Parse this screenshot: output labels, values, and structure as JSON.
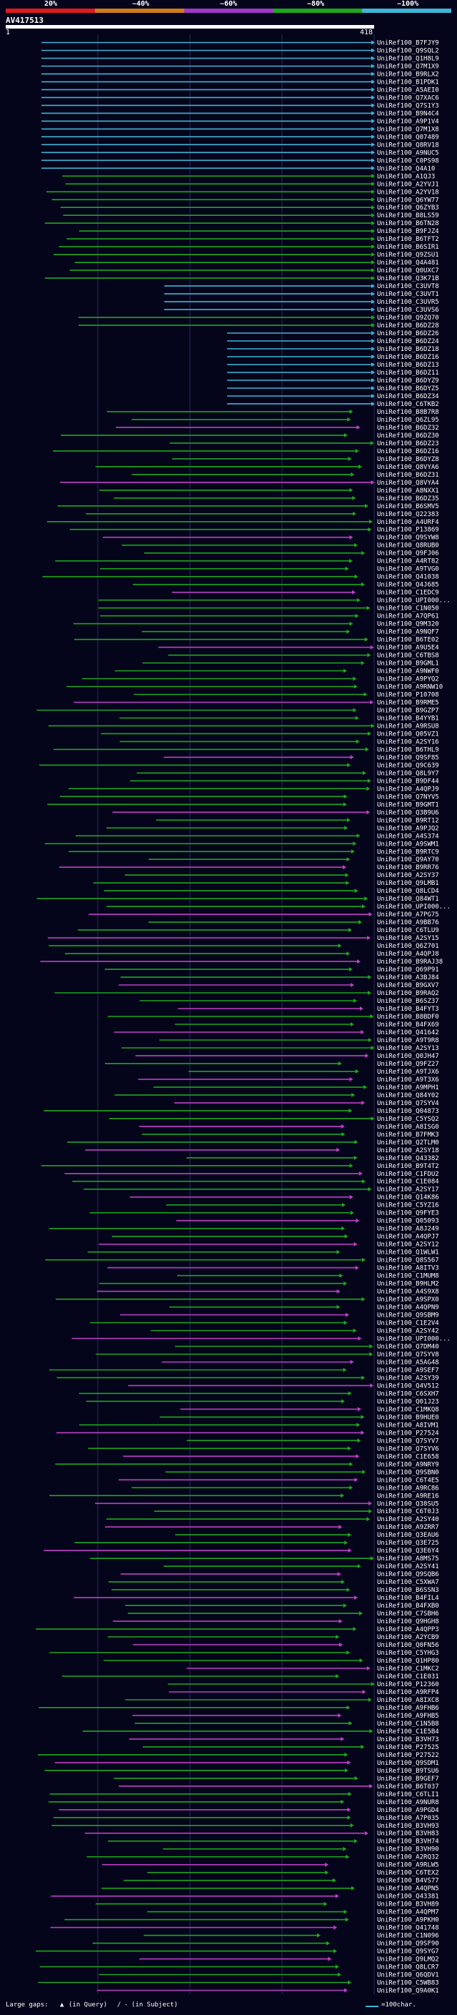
{
  "header": {
    "scale_labels": [
      "20%",
      "~40%",
      "~60%",
      "~80%",
      "~100%"
    ],
    "scale_colors": [
      "#e01a1a",
      "#d07a1a",
      "#a038c8",
      "#1da81d",
      "#3fb6d6"
    ],
    "query_id": "AV417513",
    "coord_start": "1",
    "coord_end": "418"
  },
  "legend": {
    "gaps_label": "Large gaps:",
    "query_gap_label": "(in Query)",
    "subject_gap_label": "(in Subject)",
    "scale_note": "=100char."
  },
  "chart_data": {
    "type": "alignment-overview",
    "title": "AV417513",
    "query_range": [
      1,
      418
    ],
    "color_legend": [
      {
        "label": "20%",
        "color": "#e01a1a"
      },
      {
        "label": "~40%",
        "color": "#d07a1a"
      },
      {
        "label": "~60%",
        "color": "#a038c8"
      },
      {
        "label": "~80%",
        "color": "#1da81d"
      },
      {
        "label": "~100%",
        "color": "#3fb6d6"
      }
    ],
    "hits": [
      "UniRef100_B7FJY9",
      "UniRef100_Q9SQL2",
      "UniRef100_Q1H8L9",
      "UniRef100_Q7M1X9",
      "UniRef100_B9RLX2",
      "UniRef100_B1PDK1",
      "UniRef100_A5AEI0",
      "UniRef100_Q7XAC6",
      "UniRef100_Q7S1Y3",
      "UniRef100_B9N4C4",
      "UniRef100_A9P1V4",
      "UniRef100_Q7M1X8",
      "UniRef100_Q07489",
      "UniRef100_Q8RV18",
      "UniRef100_A9NUC5",
      "UniRef100_C0PS98",
      "UniRef100_Q4A10",
      "UniRef100_A1QJ3",
      "UniRef100_A2YVJ1",
      "UniRef100_A2YV18",
      "UniRef100_Q6YW77",
      "UniRef100_Q6ZYB3",
      "UniRef100_B8LS59",
      "UniRef100_B6TN28",
      "UniRef100_B9FJZ4",
      "UniRef100_B6TFT2",
      "UniRef100_B6SIR1",
      "UniRef100_Q9ZSU1",
      "UniRef100_Q4A481",
      "UniRef100_Q0UXC7",
      "UniRef100_Q3K71B",
      "UniRef100_C3UVT8",
      "UniRef100_C3UVT1",
      "UniRef100_C3UVR5",
      "UniRef100_C3UVS6",
      "UniRef100_Q9ZQ70",
      "UniRef100_B6DZ28",
      "UniRef100_B6DZ26",
      "UniRef100_B6DZ24",
      "UniRef100_B6DZ18",
      "UniRef100_B6DZ16",
      "UniRef100_B6DZ13",
      "UniRef100_B6DZ11",
      "UniRef100_B6DYZ9",
      "UniRef100_B6DYZ5",
      "UniRef100_B6DZ34",
      "UniRef100_C6TKB2",
      "UniRef100_B8B7R8",
      "UniRef100_Q6ZL95",
      "UniRef100_B6DZ32",
      "UniRef100_B6DZ30",
      "UniRef100_B6DZ23",
      "UniRef100_B6DZ16",
      "UniRef100_B6DYZ8",
      "UniRef100_Q8VYA6",
      "UniRef100_B6DZ31",
      "UniRef100_Q8VYA4",
      "UniRef100_A8NXX1",
      "UniRef100_B6DZ35",
      "UniRef100_B6SMV5",
      "UniRef100_Q22383",
      "UniRef100_A4URF4",
      "UniRef100_P13869",
      "UniRef100_Q9SYW8",
      "UniRef100_Q8RUB0",
      "UniRef100_Q9FJ06",
      "UniRef100_A4RT82",
      "UniRef100_A9TVG0",
      "UniRef100_Q41038",
      "UniRef100_Q4J685",
      "UniRef100_C1EDC9",
      "UniRef100_UPI000...",
      "UniRef100_C1N050",
      "UniRef100_A7QP61",
      "UniRef100_Q9M320",
      "UniRef100_A9NQF7",
      "UniRef100_B6TE02",
      "UniRef100_A9U5E4",
      "UniRef100_C6TBS8",
      "UniRef100_B9GML1",
      "UniRef100_A9NWF0",
      "UniRef100_A9PYQ2",
      "UniRef100_A9RNW10",
      "UniRef100_P10708",
      "UniRef100_B9RME5",
      "UniRef100_B9GZP7",
      "UniRef100_B4YYB1",
      "UniRef100_A9RSU8",
      "UniRef100_Q05VZ1",
      "UniRef100_A2SY16",
      "UniRef100_B6THL9",
      "UniRef100_Q9SF85",
      "UniRef100_Q9C639",
      "UniRef100_Q8L9Y7",
      "UniRef100_B9DF44",
      "UniRef100_A4QPJ9",
      "UniRef100_Q7NYV5",
      "UniRef100_B9GMT1",
      "UniRef100_Q3B9U6",
      "UniRef100_B9RT12",
      "UniRef100_A9PJQ2",
      "UniRef100_A4S374",
      "UniRef100_A9SWM1",
      "UniRef100_B9RTC9",
      "UniRef100_Q9AY70",
      "UniRef100_B9RR76",
      "UniRef100_A2SY37",
      "UniRef100_Q9LMB1",
      "UniRef100_Q8LCD4",
      "UniRef100_Q84WT1",
      "UniRef100_UPI000...",
      "UniRef100_A7PG75",
      "UniRef100_A9BB76",
      "UniRef100_C6TLU9",
      "UniRef100_A2SY15",
      "UniRef100_Q6Z701",
      "UniRef100_A4QPJ8",
      "UniRef100_B9RAJ38",
      "UniRef100_Q69P91",
      "UniRef100_A3BJ84",
      "UniRef100_B9GXV7",
      "UniRef100_B9RAQ2",
      "UniRef100_B6SZ37",
      "UniRef100_B4FYT3",
      "UniRef100_B8BDF0",
      "UniRef100_B4FX69",
      "UniRef100_Q41642",
      "UniRef100_A9T9R8",
      "UniRef100_A2SY13",
      "UniRef100_Q0JH47",
      "UniRef100_Q9FZ27",
      "UniRef100_A9TJX6",
      "UniRef100_A9T3X6",
      "UniRef100_A9MPH1",
      "UniRef100_Q84Y02",
      "UniRef100_Q7SYV4",
      "UniRef100_Q04873",
      "UniRef100_C5YSQ2",
      "UniRef100_A8ISG0",
      "UniRef100_B7FMK3",
      "UniRef100_Q2TLM0",
      "UniRef100_A2SY18",
      "UniRef100_Q43382",
      "UniRef100_B9T4T2",
      "UniRef100_C1FDU2",
      "UniRef100_C1E084",
      "UniRef100_A2SY17",
      "UniRef100_Q14K86",
      "UniRef100_C5YZ16",
      "UniRef100_Q9FYE3",
      "UniRef100_Q05093",
      "UniRef100_A8J249",
      "UniRef100_A4QPJ7",
      "UniRef100_A2SY12",
      "UniRef100_Q1WLW1",
      "UniRef100_Q8S567",
      "UniRef100_A8ITV3",
      "UniRef100_C1MUM8",
      "UniRef100_B9HLM2",
      "UniRef100_A4S9X8",
      "UniRef100_A9SPX0",
      "UniRef100_A4QPN9",
      "UniRef100_Q9SBM9",
      "UniRef100_C1E2V4",
      "UniRef100_A2SY42",
      "UniRef100_UPI000...",
      "UniRef100_Q7DM40",
      "UniRef100_Q7SYV8",
      "UniRef100_A5AG48",
      "UniRef100_A9SEF7",
      "UniRef100_A2SY39",
      "UniRef100_Q4V512",
      "UniRef100_C6SXH7",
      "UniRef100_Q01J23",
      "UniRef100_C1MKQ8",
      "UniRef100_B9HUE0",
      "UniRef100_A8IVM1",
      "UniRef100_P27524",
      "UniRef100_Q7SYV7",
      "UniRef100_Q7SYV6",
      "UniRef100_C1E658",
      "UniRef100_A9NRY9",
      "UniRef100_Q9SBN0",
      "UniRef100_C6T4E5",
      "UniRef100_A9RC86",
      "UniRef100_A9RE16",
      "UniRef100_Q38SU5",
      "UniRef100_C6T0J3",
      "UniRef100_A2SY40",
      "UniRef100_A9ZRR7",
      "UniRef100_Q3EAU6",
      "UniRef100_Q3E725",
      "UniRef100_Q3E6Y4",
      "UniRef100_A8MS75",
      "UniRef100_A2SY41",
      "UniRef100_Q9SQB6",
      "UniRef100_C5XWA7",
      "UniRef100_B6SSN3",
      "UniRef100_B4FIL4",
      "UniRef100_B4FXB0",
      "UniRef100_C7SBH6",
      "UniRef100_Q9HGH8",
      "UniRef100_A4QPP3",
      "UniRef100_A2YCB9",
      "UniRef100_Q0FN56",
      "UniRef100_C5YHG3",
      "UniRef100_Q1HP80",
      "UniRef100_C1MKC2",
      "UniRef100_C1E031",
      "UniRef100_P12360",
      "UniRef100_A9RFP4",
      "UniRef100_A8IXC8",
      "UniRef100_A9FHB6",
      "UniRef100_A9FHB5",
      "UniRef100_C1N5B8",
      "UniRef100_C1E5B4",
      "UniRef100_B3VH73",
      "UniRef100_P27525",
      "UniRef100_P27522",
      "UniRef100_Q9SDM1",
      "UniRef100_B9TSU6",
      "UniRef100_B9GEF7",
      "UniRef100_B6T037",
      "UniRef100_C6TLI1",
      "UniRef100_A9NUR8",
      "UniRef100_A9PGD4",
      "UniRef100_A7P035",
      "UniRef100_B3VH93",
      "UniRef100_B3VH83",
      "UniRef100_B3VH74",
      "UniRef100_B3VH90",
      "UniRef100_A2RQ32",
      "UniRef100_A9RLW5",
      "UniRef100_C6TEX2",
      "UniRef100_B4VS77",
      "UniRef100_A4QPN5",
      "UniRef100_Q43381",
      "UniRef100_B3VH89",
      "UniRef100_A4QPM7",
      "UniRef100_A9PKH0",
      "UniRef100_Q41748",
      "UniRef100_C1N096",
      "UniRef100_Q9SF90",
      "UniRef100_Q9SYG7",
      "UniRef100_Q9LMQ2",
      "UniRef100_Q8LCR7",
      "UniRef100_Q6QDV1",
      "UniRef100_C5WB83",
      "UniRef100_Q9A0K1"
    ]
  }
}
